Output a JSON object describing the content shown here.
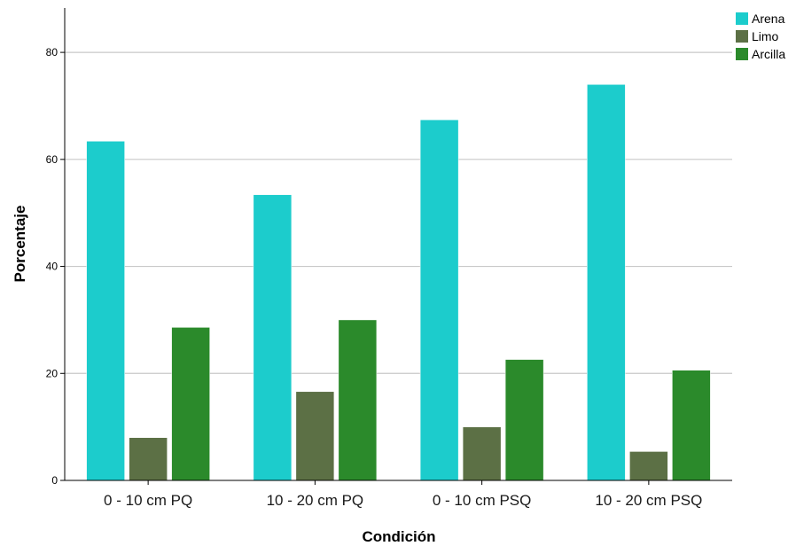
{
  "chart_data": {
    "type": "bar",
    "xlabel": "Condición",
    "ylabel": "Porcentaje",
    "categories": [
      "0 - 10 cm PQ",
      "10 - 20 cm PQ",
      "0 - 10 cm PSQ",
      "10 - 20 cm PSQ"
    ],
    "series": [
      {
        "name": "Arena",
        "color": "#1ccccc",
        "values": [
          63.4,
          53.4,
          67.4,
          74.0
        ]
      },
      {
        "name": "Limo",
        "color": "#5c7045",
        "values": [
          8.0,
          16.6,
          10.0,
          5.4
        ]
      },
      {
        "name": "Arcilla",
        "color": "#2b8a2b",
        "values": [
          28.6,
          30.0,
          22.6,
          20.6
        ]
      }
    ],
    "ylim": [
      0,
      88.3
    ],
    "yticks": [
      0,
      20,
      40,
      60,
      80
    ],
    "grid": true,
    "legend": "top-right"
  }
}
